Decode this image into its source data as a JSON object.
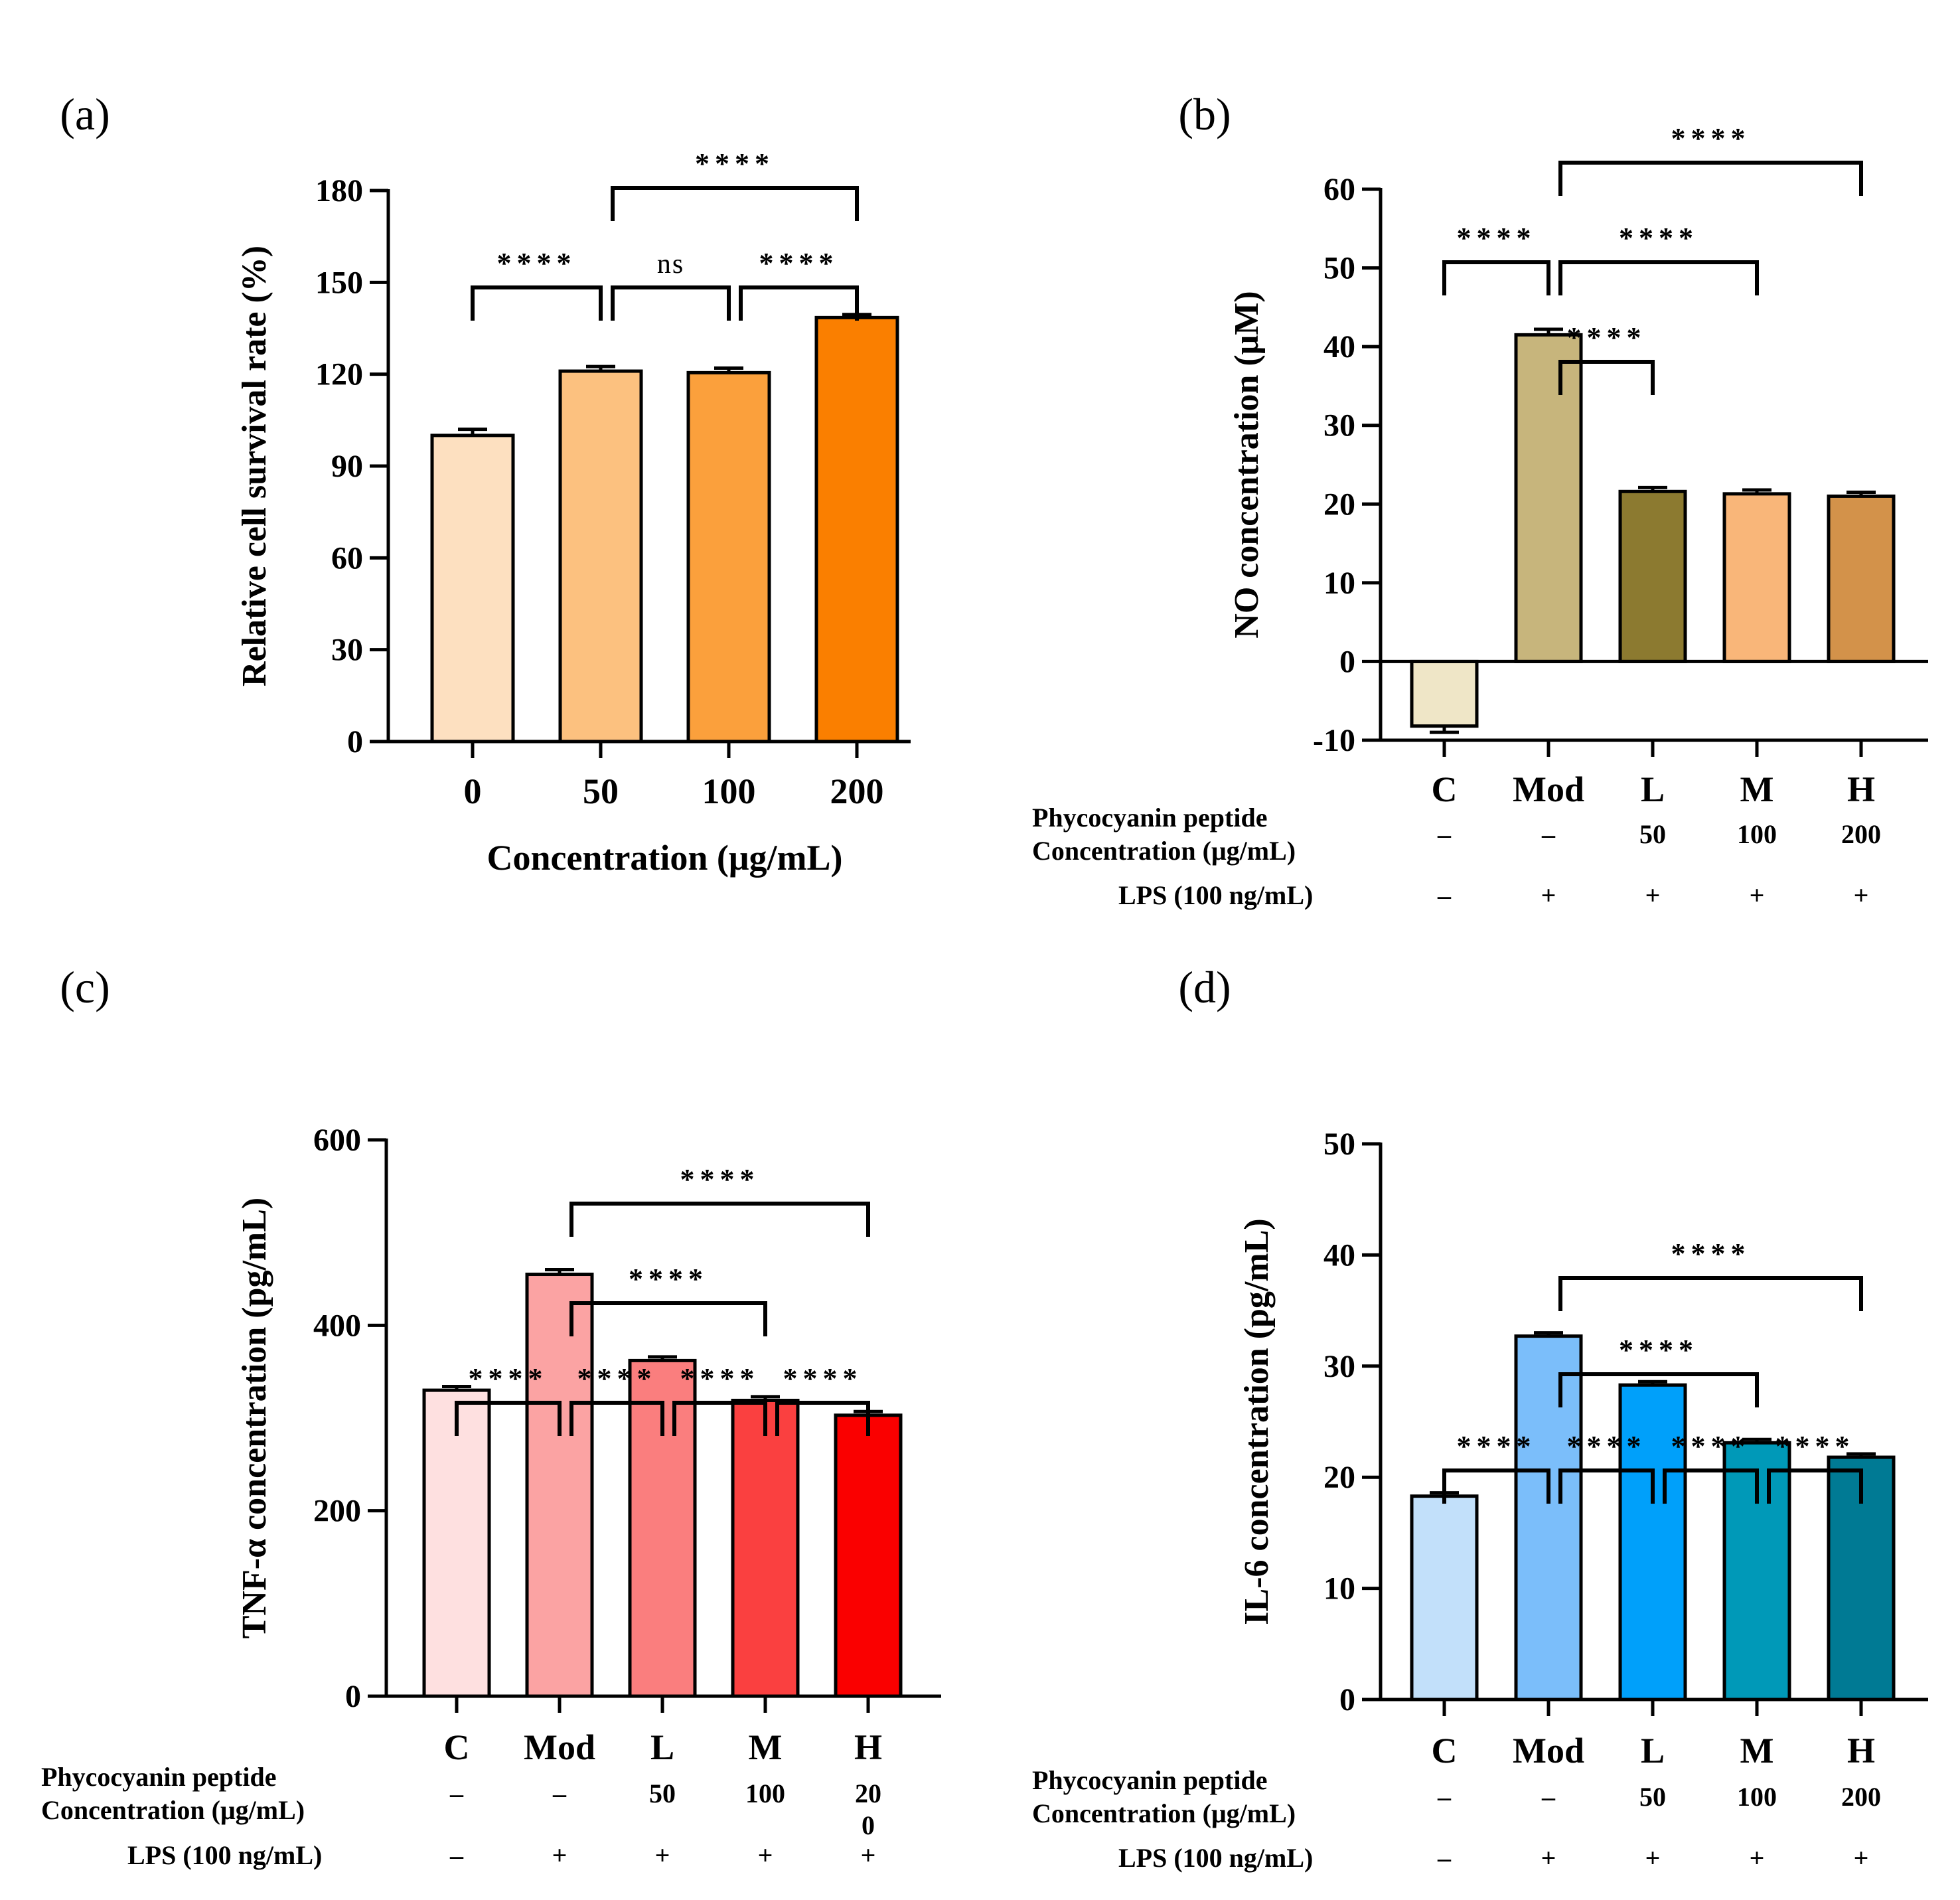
{
  "chart_data": [
    {
      "id": "a",
      "type": "bar",
      "panel_label": "(a)",
      "categories": [
        "0",
        "50",
        "100",
        "200"
      ],
      "values": [
        100,
        121,
        120.5,
        138.5
      ],
      "errors": [
        2,
        1.5,
        1.5,
        1
      ],
      "colors": [
        "#FDE0C0",
        "#FCC17F",
        "#FBA03C",
        "#FA7F00"
      ],
      "ylabel": "Relative cell survival rate (%)",
      "xlabel": "Concentration (μg/mL)",
      "ylim": [
        0,
        180
      ],
      "yticks": [
        0,
        30,
        60,
        90,
        120,
        150,
        180
      ],
      "significance": [
        {
          "from": 0,
          "to": 1,
          "label": "****",
          "level": 0
        },
        {
          "from": 1,
          "to": 2,
          "label": "ns",
          "level": 0
        },
        {
          "from": 2,
          "to": 3,
          "label": "****",
          "level": 0
        },
        {
          "from": 1,
          "to": 3,
          "label": "****",
          "level": 1
        }
      ]
    },
    {
      "id": "b",
      "type": "bar",
      "panel_label": "(b)",
      "categories": [
        "C",
        "Mod",
        "L",
        "M",
        "H"
      ],
      "values": [
        -8.2,
        41.5,
        21.6,
        21.3,
        21
      ],
      "errors": [
        0.8,
        0.7,
        0.5,
        0.5,
        0.5
      ],
      "colors": [
        "#EFE6C7",
        "#C7B57C",
        "#8C7A30",
        "#F9B679",
        "#D3924A"
      ],
      "ylabel": "NO concentration (μM)",
      "ylim": [
        -10,
        60
      ],
      "yticks": [
        -10,
        0,
        10,
        20,
        30,
        40,
        50,
        60
      ],
      "row1_label": [
        "Phycocyanin peptide",
        "Concentration (μg/mL)"
      ],
      "row1_values": [
        "–",
        "–",
        "50",
        "100",
        "200"
      ],
      "row2_label": "LPS (100 ng/mL)",
      "row2_values": [
        "–",
        "+",
        "+",
        "+",
        "+"
      ],
      "significance": [
        {
          "from": 0,
          "to": 1,
          "label": "****",
          "level": 1
        },
        {
          "from": 1,
          "to": 2,
          "label": "****",
          "level": 0
        },
        {
          "from": 1,
          "to": 3,
          "label": "****",
          "level": 1
        },
        {
          "from": 1,
          "to": 4,
          "label": "****",
          "level": 2
        }
      ]
    },
    {
      "id": "c",
      "type": "bar",
      "panel_label": "(c)",
      "categories": [
        "C",
        "Mod",
        "L",
        "M",
        "H"
      ],
      "values": [
        330,
        455,
        362,
        319,
        303
      ],
      "errors": [
        4,
        5,
        4,
        4,
        4
      ],
      "colors": [
        "#FEE0E0",
        "#FBA3A3",
        "#FA7E7E",
        "#FA4040",
        "#FA0000"
      ],
      "ylabel": "TNF-α concentration (pg/mL)",
      "ylim": [
        0,
        600
      ],
      "yticks": [
        0,
        200,
        400,
        600
      ],
      "row1_label": [
        "Phycocyanin peptide",
        "Concentration (μg/mL)"
      ],
      "row1_values": [
        "–",
        "–",
        "50",
        "100",
        "20\n0"
      ],
      "row2_label": "LPS (100 ng/mL)",
      "row2_values": [
        "–",
        "+",
        "+",
        "+",
        "+"
      ],
      "significance": [
        {
          "from": 0,
          "to": 1,
          "label": "****",
          "level": 0
        },
        {
          "from": 1,
          "to": 2,
          "label": "****",
          "level": 0
        },
        {
          "from": 2,
          "to": 3,
          "label": "****",
          "level": 0
        },
        {
          "from": 3,
          "to": 4,
          "label": "****",
          "level": 0
        },
        {
          "from": 1,
          "to": 3,
          "label": "****",
          "level": 1
        },
        {
          "from": 1,
          "to": 4,
          "label": "****",
          "level": 2
        }
      ]
    },
    {
      "id": "d",
      "type": "bar",
      "panel_label": "(d)",
      "categories": [
        "C",
        "Mod",
        "L",
        "M",
        "H"
      ],
      "values": [
        18.3,
        32.7,
        28.3,
        23.1,
        21.8
      ],
      "errors": [
        0.3,
        0.3,
        0.3,
        0.3,
        0.3
      ],
      "colors": [
        "#C2E0FA",
        "#7BBEFA",
        "#00A0FA",
        "#0099B8",
        "#007A94"
      ],
      "ylabel": "IL-6 concentration (pg/mL)",
      "ylim": [
        0,
        50
      ],
      "yticks": [
        0,
        10,
        20,
        30,
        40,
        50
      ],
      "row1_label": [
        "Phycocyanin peptide",
        "Concentration (μg/mL)"
      ],
      "row1_values": [
        "–",
        "–",
        "50",
        "100",
        "200"
      ],
      "row2_label": "LPS (100 ng/mL)",
      "row2_values": [
        "–",
        "+",
        "+",
        "+",
        "+"
      ],
      "significance": [
        {
          "from": 0,
          "to": 1,
          "label": "****",
          "level": 0
        },
        {
          "from": 1,
          "to": 2,
          "label": "****",
          "level": 0
        },
        {
          "from": 2,
          "to": 3,
          "label": "****",
          "level": 0
        },
        {
          "from": 3,
          "to": 4,
          "label": "****",
          "level": 0
        },
        {
          "from": 1,
          "to": 3,
          "label": "****",
          "level": 1
        },
        {
          "from": 1,
          "to": 4,
          "label": "****",
          "level": 2
        }
      ]
    }
  ]
}
